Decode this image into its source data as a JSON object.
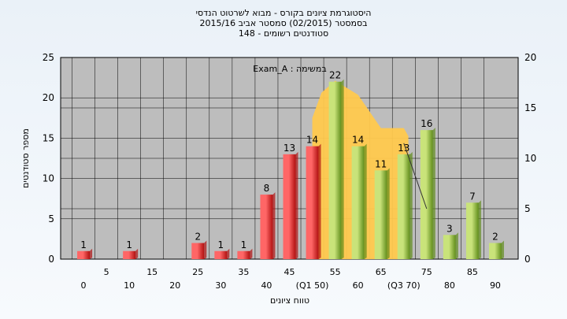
{
  "chart_data": {
    "type": "bar",
    "title_lines": [
      "היסטוגרמת ציונים בקורס - מבוא לשרטוט הנדסי",
      "בסמסטר  (02/2015)  סמסטר אביב 2015/16",
      "סטודנטים רשומים - 148"
    ],
    "annotation": "Exam_A : במשימה",
    "xlabel": "טווח ציונים",
    "ylabel": "מספר סטודנטים",
    "ylim": [
      0,
      25
    ],
    "y_ticks": [
      "0",
      "5",
      "10",
      "15",
      "20",
      "25"
    ],
    "y2lim": [
      0,
      20
    ],
    "y2_ticks": [
      "0",
      "5",
      "10",
      "15",
      "20"
    ],
    "grid": true,
    "x_labels_lower": [
      "0",
      "10",
      "20",
      "30",
      "40",
      "(Q1 50)",
      "60",
      "(Q3 70)",
      "80",
      "90"
    ],
    "x_labels_upper": [
      "5",
      "15",
      "25",
      "35",
      "45",
      "55",
      "65",
      "75",
      "85"
    ],
    "bars": [
      {
        "bin": 0,
        "value": 1,
        "label": "1",
        "color": "red"
      },
      {
        "bin": 10,
        "value": 1,
        "label": "1",
        "color": "red"
      },
      {
        "bin": 25,
        "value": 2,
        "label": "2",
        "color": "red"
      },
      {
        "bin": 30,
        "value": 1,
        "label": "1",
        "color": "red"
      },
      {
        "bin": 35,
        "value": 1,
        "label": "1",
        "color": "red"
      },
      {
        "bin": 40,
        "value": 8,
        "label": "8",
        "color": "red"
      },
      {
        "bin": 45,
        "value": 13,
        "label": "13",
        "color": "red"
      },
      {
        "bin": 50,
        "value": 14,
        "label": "14",
        "color": "red"
      },
      {
        "bin": 55,
        "value": 22,
        "label": "22",
        "color": "green"
      },
      {
        "bin": 60,
        "value": 14,
        "label": "14",
        "color": "green"
      },
      {
        "bin": 65,
        "value": 11,
        "label": "11",
        "color": "green"
      },
      {
        "bin": 70,
        "value": 13,
        "label": "13",
        "color": "green"
      },
      {
        "bin": 75,
        "value": 16,
        "label": "16",
        "color": "green"
      },
      {
        "bin": 80,
        "value": 3,
        "label": "3",
        "color": "green"
      },
      {
        "bin": 85,
        "value": 7,
        "label": "7",
        "color": "green"
      },
      {
        "bin": 90,
        "value": 2,
        "label": "2",
        "color": "green"
      }
    ],
    "area_y2": [
      {
        "x": 50,
        "y": 14
      },
      {
        "x": 52,
        "y": 16.5
      },
      {
        "x": 55,
        "y": 17.7
      },
      {
        "x": 60,
        "y": 16.3
      },
      {
        "x": 65,
        "y": 13
      },
      {
        "x": 70,
        "y": 13
      },
      {
        "x": 71,
        "y": 12.2
      },
      {
        "x": 71,
        "y": 0
      },
      {
        "x": 50,
        "y": 0
      }
    ],
    "line_y2": [
      {
        "x": 70,
        "y": 11.5
      },
      {
        "x": 75,
        "y": 5
      }
    ],
    "colors": {
      "plot_bg": "#bdbdbd",
      "red_light": "#ff6666",
      "red_dark": "#b01010",
      "green_light": "#c9e37a",
      "green_dark": "#5f8c1a",
      "area": "#ffc94d",
      "grid": "#000000"
    }
  }
}
